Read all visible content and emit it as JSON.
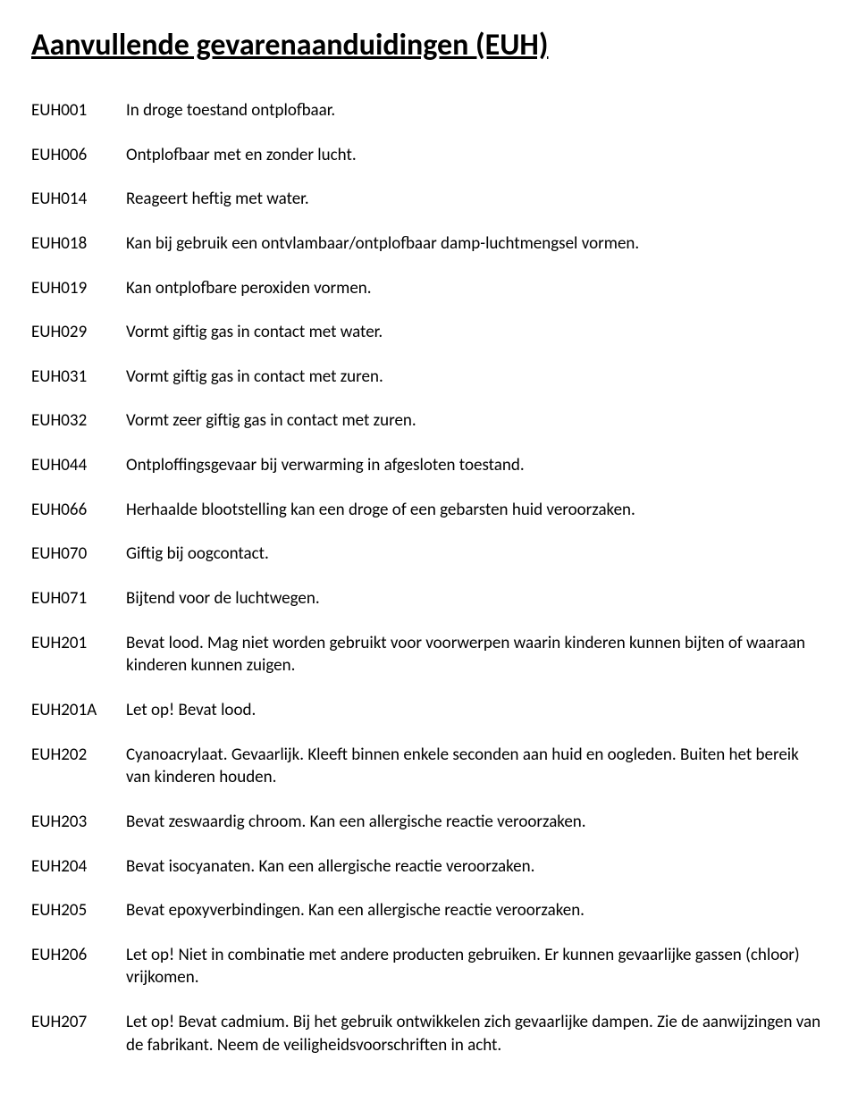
{
  "title": "Aanvullende gevarenaanduidingen (EUH)",
  "rows": [
    {
      "code": "EUH001",
      "desc": "In droge toestand ontplofbaar."
    },
    {
      "code": "EUH006",
      "desc": "Ontplofbaar met en zonder lucht."
    },
    {
      "code": "EUH014",
      "desc": "Reageert heftig met water."
    },
    {
      "code": "EUH018",
      "desc": "Kan bij gebruik een ontvlambaar/ontplofbaar damp-luchtmengsel vormen."
    },
    {
      "code": "EUH019",
      "desc": "Kan ontplofbare peroxiden vormen."
    },
    {
      "code": "EUH029",
      "desc": "Vormt giftig gas in contact met water."
    },
    {
      "code": "EUH031",
      "desc": "Vormt giftig gas in contact met zuren."
    },
    {
      "code": "EUH032",
      "desc": "Vormt zeer giftig gas in contact met zuren."
    },
    {
      "code": "EUH044",
      "desc": "Ontploffingsgevaar bij verwarming in afgesloten toestand."
    },
    {
      "code": "EUH066",
      "desc": "Herhaalde blootstelling kan een droge of een gebarsten huid veroorzaken."
    },
    {
      "code": "EUH070",
      "desc": "Giftig bij oogcontact."
    },
    {
      "code": "EUH071",
      "desc": "Bijtend voor de luchtwegen."
    },
    {
      "code": "EUH201",
      "desc": "Bevat lood. Mag niet worden gebruikt voor voorwerpen waarin kinderen kunnen bijten of waaraan kinderen kunnen zuigen."
    },
    {
      "code": "EUH201A",
      "desc": "Let op! Bevat lood."
    },
    {
      "code": "EUH202",
      "desc": "Cyanoacrylaat. Gevaarlijk. Kleeft binnen enkele seconden aan huid en oogleden. Buiten het bereik van kinderen houden."
    },
    {
      "code": "EUH203",
      "desc": "Bevat zeswaardig chroom. Kan een allergische reactie veroorzaken."
    },
    {
      "code": "EUH204",
      "desc": "Bevat isocyanaten. Kan een allergische reactie veroorzaken."
    },
    {
      "code": "EUH205",
      "desc": "Bevat epoxyverbindingen. Kan een allergische reactie veroorzaken."
    },
    {
      "code": "EUH206",
      "desc": "Let op! Niet in combinatie met andere producten gebruiken. Er kunnen gevaarlijke gassen (chloor) vrijkomen."
    },
    {
      "code": "EUH207",
      "desc": "Let op! Bevat cadmium. Bij het gebruik ontwikkelen zich gevaarlijke dampen. Zie de aanwijzingen van de fabrikant. Neem de veiligheidsvoorschriften in acht."
    }
  ]
}
